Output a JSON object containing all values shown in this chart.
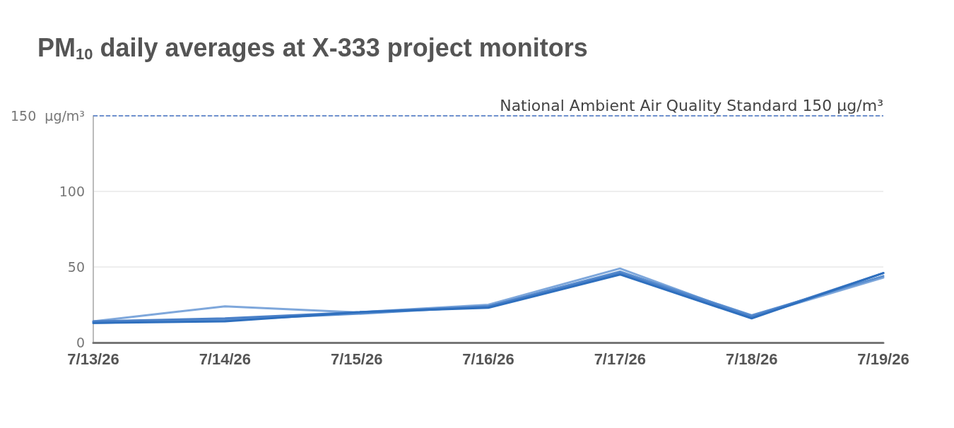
{
  "chart_data": {
    "type": "line",
    "title": "PM$_{10}$ daily averages at X-333 project monitors",
    "categories": [
      "7/13/26",
      "7/14/26",
      "7/15/26",
      "7/16/26",
      "7/17/26",
      "7/18/26",
      "7/19/26"
    ],
    "series": [
      {
        "color": "#7ea7db",
        "values": [
          14,
          24,
          20,
          25,
          49,
          17,
          43
        ]
      },
      {
        "color": "#5b8fd0",
        "values": [
          13,
          15,
          19,
          24,
          47,
          18,
          44
        ]
      },
      {
        "color": "#4a80c8",
        "values": [
          14,
          16,
          20,
          24,
          46,
          17,
          46
        ]
      },
      {
        "color": "#2e6fbe",
        "values": [
          13,
          14,
          20,
          23,
          45,
          16,
          46
        ]
      }
    ],
    "ylim": [
      0,
      150
    ],
    "yticks": [
      0,
      50,
      100,
      {
        "value": 150,
        "label": "150  µg/m³"
      }
    ],
    "grid": "y",
    "marker": "none",
    "line_style": "solid",
    "ref_lines": [
      {
        "axis": "y",
        "value": 150,
        "label": "National Ambient Air Quality Standard 150 µg/m³",
        "color": "#4472c4",
        "line_style": "dashed"
      }
    ]
  }
}
